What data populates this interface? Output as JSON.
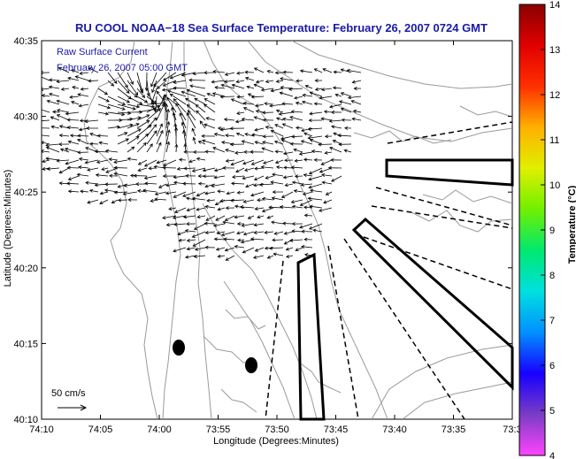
{
  "chart_data": {
    "type": "map",
    "title": "RU COOL  NOAA−18  Sea Surface Temperature:  February 26, 2007 0724 GMT",
    "overlay_lines": [
      "Raw Surface Current",
      "February 26, 2007 05:00 GMT"
    ],
    "xlabel": "Longitude (Degrees:Minutes)",
    "ylabel": "Latitude (Degrees:Minutes)",
    "x_ticks": [
      "74:10",
      "74:05",
      "74:00",
      "73:55",
      "73:50",
      "73:45",
      "73:40",
      "73:35",
      "73:3"
    ],
    "y_ticks": [
      "40:35",
      "40:30",
      "40:25",
      "40:20",
      "40:15",
      "40:10"
    ],
    "xlim": [
      "74:10",
      "73:30"
    ],
    "ylim": [
      "40:10",
      "40:35"
    ],
    "scale_label": "50 cm/s",
    "colorbar": {
      "label": "Temperature (°C)",
      "min": 4,
      "max": 14,
      "ticks": [
        "14",
        "13",
        "12",
        "11",
        "10",
        "9",
        "8",
        "7",
        "6",
        "5",
        "4"
      ],
      "colormap": [
        "#ff44ff",
        "#7a3cc4",
        "#1800ff",
        "#0090ff",
        "#00e0e0",
        "#00e870",
        "#70f000",
        "#e0f000",
        "#ffb000",
        "#ff3000",
        "#e00000",
        "#8a0000"
      ]
    },
    "colors": {
      "title": "#1a1aa6",
      "contours": "#9a9a9a",
      "vectors": "#000000"
    }
  }
}
